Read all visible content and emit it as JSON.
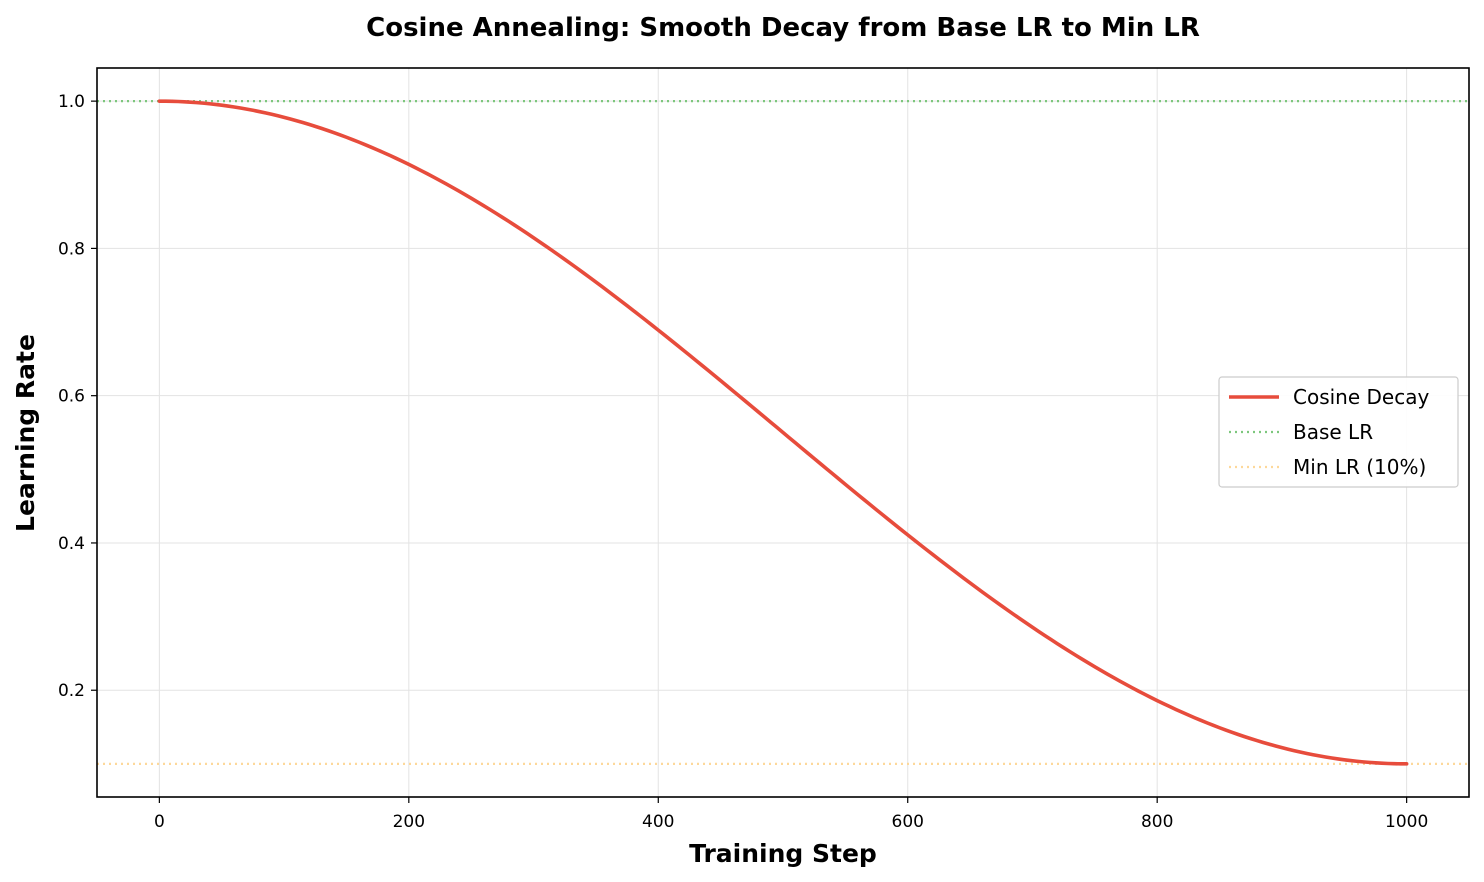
{
  "chart_data": {
    "type": "line",
    "title": "Cosine Annealing: Smooth Decay from Base LR to Min LR",
    "xlabel": "Training Step",
    "ylabel": "Learning Rate",
    "xlim": [
      -50,
      1050
    ],
    "ylim": [
      0.055,
      1.045
    ],
    "xticks": [
      0,
      200,
      400,
      600,
      800,
      1000
    ],
    "xtick_labels": [
      "0",
      "200",
      "400",
      "600",
      "800",
      "1000"
    ],
    "yticks": [
      0.2,
      0.4,
      0.6,
      0.8,
      1.0
    ],
    "ytick_labels": [
      "0.2",
      "0.4",
      "0.6",
      "0.8",
      "1.0"
    ],
    "grid": true,
    "legend_position": "center-right",
    "series": [
      {
        "name": "Cosine Decay",
        "color": "#e74c3c",
        "style": "solid",
        "x": [
          0,
          50,
          100,
          150,
          200,
          250,
          300,
          350,
          400,
          450,
          500,
          550,
          600,
          650,
          700,
          750,
          800,
          850,
          900,
          950,
          1000
        ],
        "values": [
          1.0,
          0.9945,
          0.978,
          0.9511,
          0.9141,
          0.8682,
          0.8145,
          0.7543,
          0.6891,
          0.6204,
          0.55,
          0.4796,
          0.4109,
          0.3457,
          0.2855,
          0.2318,
          0.1859,
          0.1489,
          0.122,
          0.1055,
          0.1
        ]
      },
      {
        "name": "Base LR",
        "color": "#7dc77d",
        "style": "dotted",
        "hline": 1.0
      },
      {
        "name": "Min LR (10%)",
        "color": "#fdd89a",
        "style": "dotted",
        "hline": 0.1
      }
    ]
  }
}
